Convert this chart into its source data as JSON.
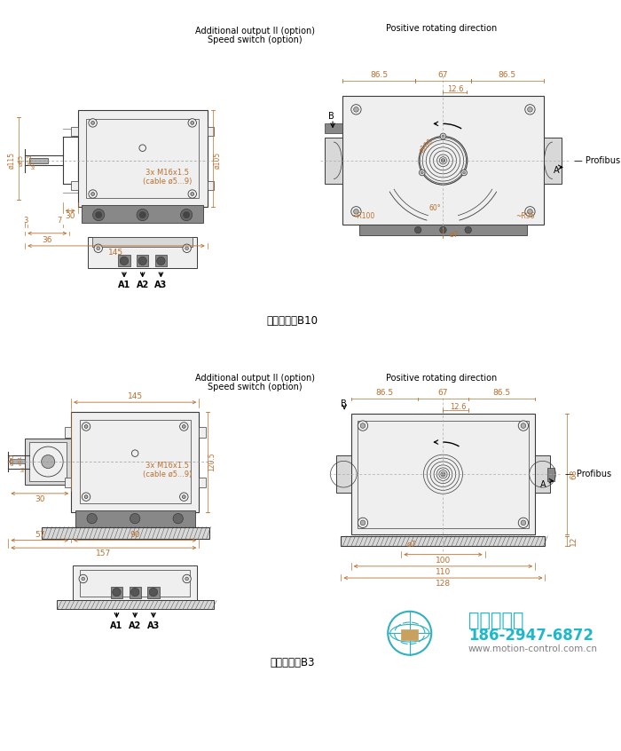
{
  "bg_color": "#ffffff",
  "line_color": "#3a3a3a",
  "dim_color": "#b87030",
  "text_color": "#000000",
  "top_label1": "Additional output II (option)",
  "top_label2": "Speed switch (option)",
  "pos_rot_dir": "Positive rotating direction",
  "profibus": "Profibus",
  "label_b10": "带欧式法兰B10",
  "label_b3": "带外壳支脚B3",
  "cable_label": "3x M16x1.5\n(cable ø5...9)",
  "company": "西安德伍拓",
  "phone": "186-2947-6872",
  "website": "www.motion-control.com.cn",
  "gray_body": "#d8d8d8",
  "gray_light": "#efefef",
  "gray_mid": "#b0b0b0",
  "gray_dark": "#888888",
  "gray_hatch": "#c0c0c0"
}
